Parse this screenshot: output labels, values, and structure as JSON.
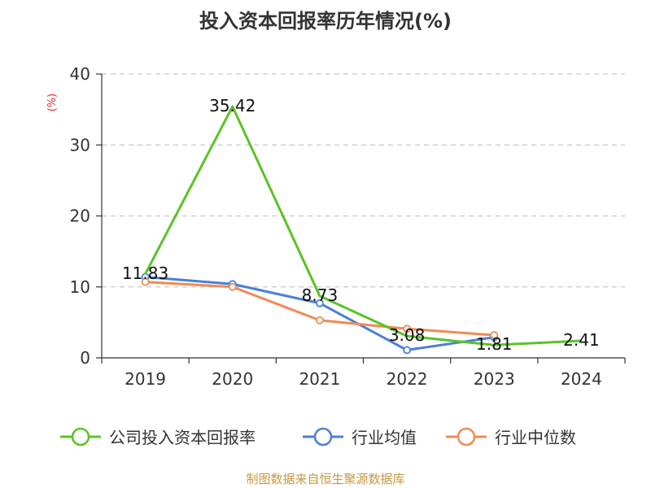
{
  "chart_data": {
    "type": "line",
    "title": "投入资本回报率历年情况(%)",
    "ylabel": "(%)",
    "xlabel": "",
    "categories": [
      "2019",
      "2020",
      "2021",
      "2022",
      "2023",
      "2024"
    ],
    "ylim": [
      0,
      40
    ],
    "yticks": [
      0,
      10,
      20,
      30,
      40
    ],
    "grid": true,
    "legend_position": "bottom",
    "series": [
      {
        "name": "公司投入资本回报率",
        "color": "#5ac325",
        "values": [
          11.83,
          35.42,
          8.73,
          3.08,
          1.81,
          2.41
        ],
        "labels": [
          "11.83",
          "35.42",
          "8.73",
          "3.08",
          "1.81",
          "2.41"
        ]
      },
      {
        "name": "行业均值",
        "color": "#4a7fd8",
        "values": [
          11.4,
          10.4,
          7.7,
          1.1,
          2.9,
          null
        ]
      },
      {
        "name": "行业中位数",
        "color": "#f08a55",
        "values": [
          10.7,
          10.0,
          5.3,
          4.1,
          3.2,
          null
        ]
      }
    ],
    "source": "制图数据来自恒生聚源数据库"
  }
}
